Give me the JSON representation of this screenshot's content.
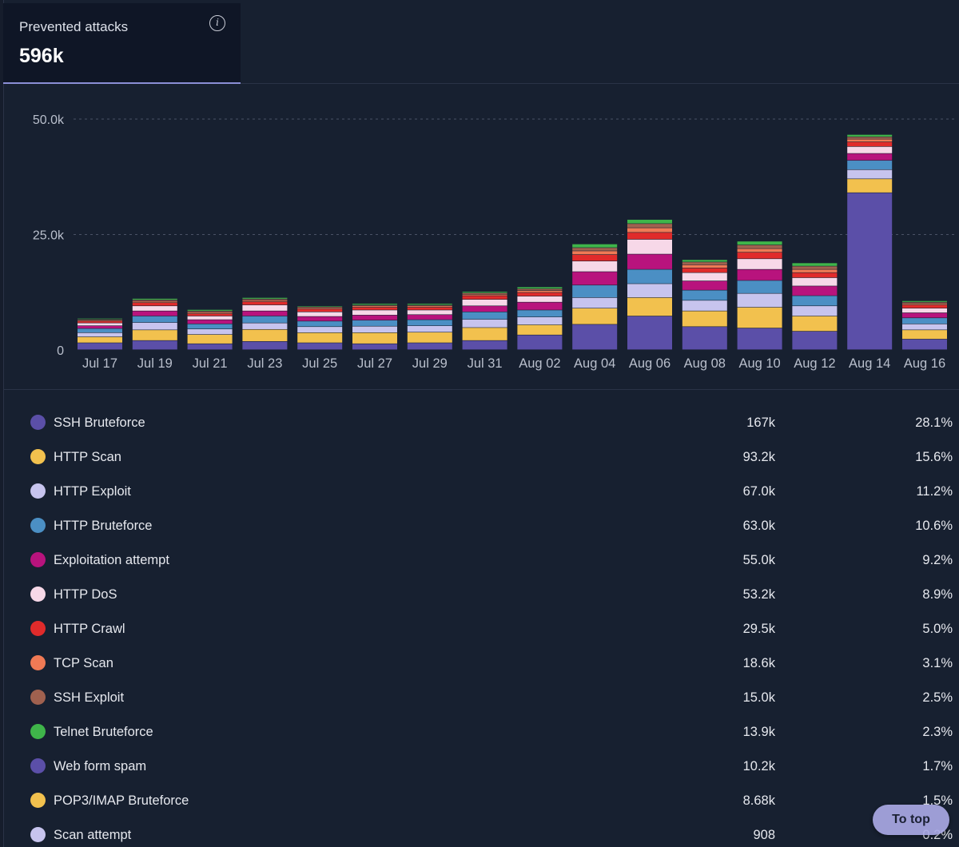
{
  "stat": {
    "label": "Prevented attacks",
    "value": "596k",
    "info_icon": "info-icon"
  },
  "chart_data": {
    "type": "bar",
    "stacked": true,
    "categories": [
      "Jul 17",
      "Jul 19",
      "Jul 21",
      "Jul 23",
      "Jul 25",
      "Jul 27",
      "Jul 29",
      "Jul 31",
      "Aug 02",
      "Aug 04",
      "Aug 06",
      "Aug 08",
      "Aug 10",
      "Aug 12",
      "Aug 14",
      "Aug 16"
    ],
    "ylim": [
      0,
      50000
    ],
    "yticks": [
      {
        "value": 0,
        "label": "0"
      },
      {
        "value": 25000,
        "label": "25.0k"
      },
      {
        "value": 50000,
        "label": "50.0k"
      }
    ],
    "grid": true,
    "series": [
      {
        "name": "SSH Bruteforce",
        "color": "#5b4fa8",
        "values": [
          1500,
          2000,
          1300,
          1800,
          1500,
          1300,
          1500,
          2000,
          3200,
          5500,
          7300,
          5000,
          4700,
          4000,
          34000,
          2300
        ]
      },
      {
        "name": "HTTP Scan",
        "color": "#f2c14e",
        "values": [
          1300,
          2300,
          2000,
          2600,
          2200,
          2400,
          2300,
          2800,
          2200,
          3500,
          4000,
          3400,
          4500,
          3300,
          3000,
          2000
        ]
      },
      {
        "name": "HTTP Exploit",
        "color": "#c7c4ee",
        "values": [
          900,
          1600,
          1200,
          1400,
          1300,
          1400,
          1400,
          1800,
          1700,
          2300,
          3000,
          2300,
          3000,
          2200,
          2000,
          1300
        ]
      },
      {
        "name": "HTTP Bruteforce",
        "color": "#4b8fc4",
        "values": [
          900,
          1400,
          1100,
          1500,
          1200,
          1300,
          1300,
          1600,
          1500,
          2700,
          3100,
          2200,
          2800,
          2200,
          2000,
          1300
        ]
      },
      {
        "name": "Exploitation attempt",
        "color": "#b8137d",
        "values": [
          600,
          1100,
          900,
          1100,
          1000,
          1100,
          1100,
          1300,
          1700,
          2900,
          3300,
          2000,
          2400,
          2100,
          1500,
          1100
        ]
      },
      {
        "name": "HTTP DoS",
        "color": "#f7d8e8",
        "values": [
          600,
          1100,
          800,
          1300,
          1000,
          1100,
          1000,
          1400,
          1300,
          2300,
          3200,
          1800,
          2300,
          1800,
          1500,
          1000
        ]
      },
      {
        "name": "HTTP Crawl",
        "color": "#e02b2b",
        "values": [
          400,
          700,
          500,
          700,
          600,
          600,
          600,
          800,
          800,
          1400,
          1500,
          1000,
          1400,
          1100,
          1000,
          700
        ]
      },
      {
        "name": "TCP Scan",
        "color": "#f07a55",
        "values": [
          200,
          300,
          300,
          300,
          300,
          300,
          300,
          300,
          400,
          800,
          1000,
          700,
          800,
          700,
          600,
          300
        ]
      },
      {
        "name": "SSH Exploit",
        "color": "#a0614f",
        "values": [
          200,
          300,
          300,
          300,
          200,
          200,
          200,
          300,
          400,
          700,
          900,
          600,
          800,
          700,
          500,
          300
        ]
      },
      {
        "name": "Telnet Bruteforce",
        "color": "#3fb54a",
        "values": [
          200,
          300,
          300,
          300,
          200,
          300,
          300,
          300,
          400,
          800,
          900,
          500,
          800,
          700,
          500,
          300
        ]
      }
    ]
  },
  "legend": [
    {
      "name": "SSH Bruteforce",
      "value": "167k",
      "pct": "28.1%",
      "color": "#5b4fa8"
    },
    {
      "name": "HTTP Scan",
      "value": "93.2k",
      "pct": "15.6%",
      "color": "#f2c14e"
    },
    {
      "name": "HTTP Exploit",
      "value": "67.0k",
      "pct": "11.2%",
      "color": "#c7c4ee"
    },
    {
      "name": "HTTP Bruteforce",
      "value": "63.0k",
      "pct": "10.6%",
      "color": "#4b8fc4"
    },
    {
      "name": "Exploitation attempt",
      "value": "55.0k",
      "pct": "9.2%",
      "color": "#b8137d"
    },
    {
      "name": "HTTP DoS",
      "value": "53.2k",
      "pct": "8.9%",
      "color": "#f7d8e8"
    },
    {
      "name": "HTTP Crawl",
      "value": "29.5k",
      "pct": "5.0%",
      "color": "#e02b2b"
    },
    {
      "name": "TCP Scan",
      "value": "18.6k",
      "pct": "3.1%",
      "color": "#f07a55"
    },
    {
      "name": "SSH Exploit",
      "value": "15.0k",
      "pct": "2.5%",
      "color": "#a0614f"
    },
    {
      "name": "Telnet Bruteforce",
      "value": "13.9k",
      "pct": "2.3%",
      "color": "#3fb54a"
    },
    {
      "name": "Web form spam",
      "value": "10.2k",
      "pct": "1.7%",
      "color": "#5b4fa8"
    },
    {
      "name": "POP3/IMAP Bruteforce",
      "value": "8.68k",
      "pct": "1.5%",
      "color": "#f2c14e"
    },
    {
      "name": "Scan attempt",
      "value": "908",
      "pct": "0.2%",
      "color": "#c7c4ee"
    }
  ],
  "to_top_label": "To top"
}
